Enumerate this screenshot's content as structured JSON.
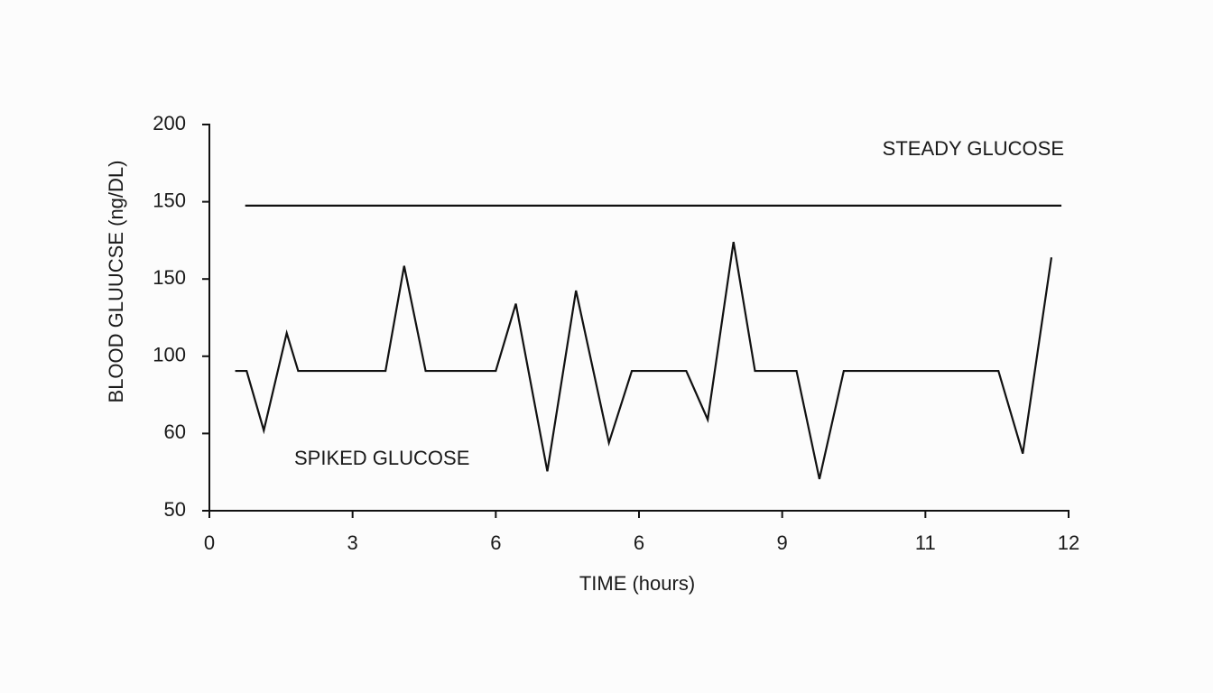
{
  "chart_data": {
    "type": "line",
    "xlabel": "TIME (hours)",
    "ylabel": "BLOOD GLUUCSE (ng/DL)",
    "xlim": [
      0,
      6
    ],
    "xticks": [
      {
        "value": 0,
        "label": "0"
      },
      {
        "value": 1,
        "label": "3"
      },
      {
        "value": 2,
        "label": "6"
      },
      {
        "value": 3,
        "label": "6"
      },
      {
        "value": 4,
        "label": "9"
      },
      {
        "value": 5,
        "label": "11"
      },
      {
        "value": 6,
        "label": "12"
      }
    ],
    "ylim": [
      0,
      5
    ],
    "yticks": [
      {
        "value": 0,
        "label": "50"
      },
      {
        "value": 1,
        "label": "60"
      },
      {
        "value": 2,
        "label": "100"
      },
      {
        "value": 3,
        "label": "150"
      },
      {
        "value": 4,
        "label": "150"
      },
      {
        "value": 5,
        "label": "200"
      }
    ],
    "series": [
      {
        "name": "STEADY GLUCOSE",
        "color": "#111111",
        "x": [
          0.25,
          5.95
        ],
        "values": [
          3.95,
          3.95
        ]
      },
      {
        "name": "SPIKED GLUCOSE",
        "color": "#111111",
        "x": [
          0.18,
          0.26,
          0.38,
          0.54,
          0.62,
          1.23,
          1.36,
          1.51,
          2.0,
          2.14,
          2.36,
          2.56,
          2.79,
          2.95,
          3.33,
          3.48,
          3.66,
          3.81,
          4.1,
          4.26,
          4.43,
          5.51,
          5.68,
          5.88
        ],
        "values": [
          1.81,
          1.81,
          1.04,
          2.3,
          1.81,
          1.81,
          3.17,
          1.81,
          1.81,
          2.68,
          0.51,
          2.85,
          0.88,
          1.81,
          1.81,
          1.18,
          3.48,
          1.81,
          1.81,
          0.41,
          1.81,
          1.81,
          0.74,
          3.28
        ]
      }
    ]
  }
}
